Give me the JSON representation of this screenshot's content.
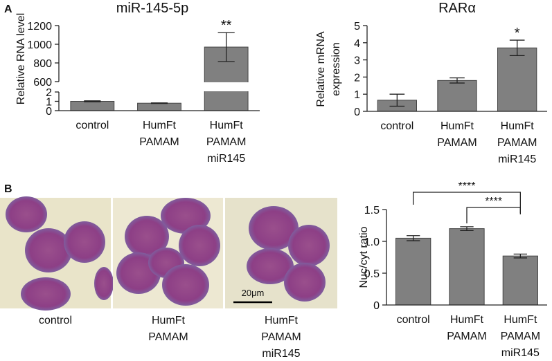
{
  "panels": [
    "A",
    "B"
  ],
  "chart_data": [
    {
      "type": "bar",
      "title": "miR-145-5p",
      "ylabel": [
        "Relative RNA level"
      ],
      "categories": [
        "control",
        "HumFt PAMAM",
        "HumFt PAMAM miR145"
      ],
      "values": [
        1,
        0.8,
        970
      ],
      "errors": [
        0.05,
        0.03,
        155
      ],
      "color": "#808080",
      "significance": [
        null,
        null,
        "**"
      ],
      "ylim": [
        0,
        1200
      ],
      "axis_break": [
        2,
        600
      ],
      "yticks": [
        0,
        1,
        2,
        600,
        800,
        1000,
        1200
      ]
    },
    {
      "type": "bar",
      "title": "RARα",
      "ylabel": [
        "Relative mRNA",
        "expression"
      ],
      "categories": [
        "control",
        "HumFt PAMAM",
        "HumFt PAMAM miR145"
      ],
      "values": [
        0.65,
        1.8,
        3.7
      ],
      "errors": [
        0.35,
        0.15,
        0.45
      ],
      "color": "#808080",
      "significance": [
        null,
        null,
        "*"
      ],
      "ylim": [
        0,
        5
      ],
      "yticks": [
        0,
        1,
        2,
        3,
        4,
        5
      ]
    },
    {
      "type": "bar",
      "ylabel": [
        "Nuc/cyt ratio"
      ],
      "categories": [
        "control",
        "HumFt PAMAM",
        "HumFt PAMAM miR145"
      ],
      "values": [
        1.05,
        1.2,
        0.77
      ],
      "errors": [
        0.04,
        0.03,
        0.03
      ],
      "color": "#808080",
      "comparisons": [
        {
          "pair": [
            "control",
            "HumFt PAMAM miR145"
          ],
          "label": "****"
        },
        {
          "pair": [
            "HumFt PAMAM",
            "HumFt PAMAM miR145"
          ],
          "label": "****"
        }
      ],
      "ylim": [
        0,
        1.5
      ],
      "yticks": [
        0,
        0.5,
        {
          "value": 1,
          "label": "1.0"
        },
        1.5
      ]
    }
  ],
  "micrographs": {
    "labels": [
      "control",
      "HumFt PAMAM",
      "HumFt PAMAM miR145"
    ],
    "scale_bar": "20μm"
  }
}
